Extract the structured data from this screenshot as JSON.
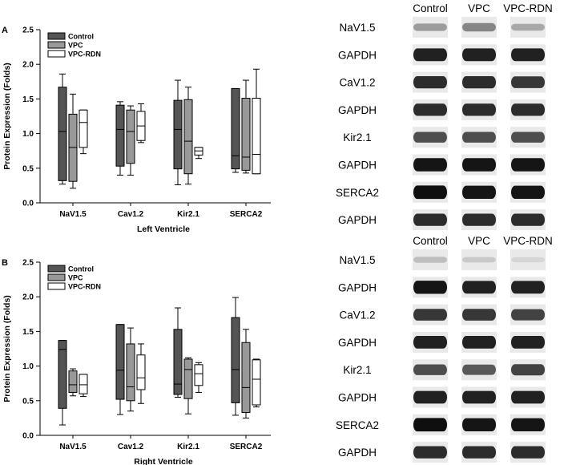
{
  "chart_data": [
    {
      "type": "box",
      "panel_label": "A",
      "xlabel": "Left Ventricle",
      "ylabel": "Protein Expression (Folds)",
      "ylim": [
        0.0,
        2.5
      ],
      "yticks": [
        "0.0",
        "0.5",
        "1.0",
        "1.5",
        "2.0",
        "2.5"
      ],
      "categories": [
        "NaV1.5",
        "Cav1.2",
        "Kir2.1",
        "SERCA2"
      ],
      "legend_position": "top-left",
      "series": [
        {
          "name": "Control",
          "color": "#555555",
          "boxes": [
            {
              "min": 0.27,
              "q1": 0.32,
              "median": 1.03,
              "q3": 1.67,
              "max": 1.86
            },
            {
              "min": 0.4,
              "q1": 0.53,
              "median": 1.06,
              "q3": 1.41,
              "max": 1.46
            },
            {
              "min": 0.26,
              "q1": 0.49,
              "median": 1.06,
              "q3": 1.48,
              "max": 1.77
            },
            {
              "min": 0.44,
              "q1": 0.49,
              "median": 0.68,
              "q3": 1.65,
              "max": 1.65
            }
          ]
        },
        {
          "name": "VPC",
          "color": "#999999",
          "boxes": [
            {
              "min": 0.21,
              "q1": 0.31,
              "median": 0.8,
              "q3": 1.28,
              "max": 1.57
            },
            {
              "min": 0.4,
              "q1": 0.57,
              "median": 1.03,
              "q3": 1.34,
              "max": 1.4
            },
            {
              "min": 0.27,
              "q1": 0.42,
              "median": 0.89,
              "q3": 1.49,
              "max": 1.67
            },
            {
              "min": 0.43,
              "q1": 0.47,
              "median": 0.66,
              "q3": 1.51,
              "max": 1.77
            }
          ]
        },
        {
          "name": "VPC-RDN",
          "color": "#ffffff",
          "boxes": [
            {
              "min": 0.71,
              "q1": 0.8,
              "median": 1.16,
              "q3": 1.34,
              "max": 1.34
            },
            {
              "min": 0.87,
              "q1": 0.9,
              "median": 1.11,
              "q3": 1.32,
              "max": 1.43
            },
            {
              "min": 0.64,
              "q1": 0.69,
              "median": 0.75,
              "q3": 0.8,
              "max": 0.8
            },
            {
              "min": 0.42,
              "q1": 0.42,
              "median": 0.7,
              "q3": 1.51,
              "max": 1.93
            }
          ]
        }
      ]
    },
    {
      "type": "box",
      "panel_label": "B",
      "xlabel": "Right Ventricle",
      "ylabel": "Protein Expression (Folds)",
      "ylim": [
        0.0,
        2.5
      ],
      "yticks": [
        "0.0",
        "0.5",
        "1.0",
        "1.5",
        "2.0",
        "2.5"
      ],
      "categories": [
        "NaV1.5",
        "Cav1.2",
        "Kir2.1",
        "SERCA2"
      ],
      "legend_position": "top-left",
      "series": [
        {
          "name": "Control",
          "color": "#555555",
          "boxes": [
            {
              "min": 0.15,
              "q1": 0.39,
              "median": 1.24,
              "q3": 1.37,
              "max": 1.37
            },
            {
              "min": 0.3,
              "q1": 0.52,
              "median": 0.94,
              "q3": 1.6,
              "max": 1.6
            },
            {
              "min": 0.55,
              "q1": 0.59,
              "median": 0.74,
              "q3": 1.53,
              "max": 1.84
            },
            {
              "min": 0.29,
              "q1": 0.47,
              "median": 0.95,
              "q3": 1.7,
              "max": 1.99
            }
          ]
        },
        {
          "name": "VPC",
          "color": "#999999",
          "boxes": [
            {
              "min": 0.57,
              "q1": 0.62,
              "median": 0.73,
              "q3": 0.93,
              "max": 0.96
            },
            {
              "min": 0.35,
              "q1": 0.5,
              "median": 0.7,
              "q3": 1.32,
              "max": 1.55
            },
            {
              "min": 0.31,
              "q1": 0.53,
              "median": 0.95,
              "q3": 1.1,
              "max": 1.12
            },
            {
              "min": 0.25,
              "q1": 0.33,
              "median": 0.69,
              "q3": 1.34,
              "max": 1.53
            }
          ]
        },
        {
          "name": "VPC-RDN",
          "color": "#ffffff",
          "boxes": [
            {
              "min": 0.56,
              "q1": 0.6,
              "median": 0.73,
              "q3": 0.88,
              "max": 0.88
            },
            {
              "min": 0.46,
              "q1": 0.66,
              "median": 0.83,
              "q3": 1.16,
              "max": 1.32
            },
            {
              "min": 0.62,
              "q1": 0.72,
              "median": 0.89,
              "q3": 1.02,
              "max": 1.05
            },
            {
              "min": 0.41,
              "q1": 0.44,
              "median": 0.81,
              "q3": 1.09,
              "max": 1.1
            }
          ]
        }
      ]
    }
  ],
  "blots": [
    {
      "columns": [
        "Control",
        "VPC",
        "VPC-RDN"
      ],
      "rows": [
        {
          "label": "NaV1.5",
          "intensity": [
            0.35,
            0.45,
            0.3
          ]
        },
        {
          "label": "GAPDH",
          "intensity": [
            0.9,
            0.9,
            0.9
          ]
        },
        {
          "label": "CaV1.2",
          "intensity": [
            0.85,
            0.85,
            0.8
          ]
        },
        {
          "label": "GAPDH",
          "intensity": [
            0.85,
            0.85,
            0.85
          ]
        },
        {
          "label": "Kir2.1",
          "intensity": [
            0.7,
            0.7,
            0.7
          ]
        },
        {
          "label": "GAPDH",
          "intensity": [
            0.95,
            0.95,
            0.95
          ]
        },
        {
          "label": "SERCA2",
          "intensity": [
            0.98,
            0.95,
            0.95
          ]
        },
        {
          "label": "GAPDH",
          "intensity": [
            0.85,
            0.85,
            0.85
          ]
        }
      ]
    },
    {
      "columns": [
        "Control",
        "VPC",
        "VPC-RDN"
      ],
      "rows": [
        {
          "label": "NaV1.5",
          "intensity": [
            0.2,
            0.15,
            0.1
          ]
        },
        {
          "label": "GAPDH",
          "intensity": [
            0.95,
            0.9,
            0.9
          ]
        },
        {
          "label": "CaV1.2",
          "intensity": [
            0.8,
            0.8,
            0.75
          ]
        },
        {
          "label": "GAPDH",
          "intensity": [
            0.9,
            0.9,
            0.9
          ]
        },
        {
          "label": "Kir2.1",
          "intensity": [
            0.7,
            0.65,
            0.75
          ]
        },
        {
          "label": "GAPDH",
          "intensity": [
            0.9,
            0.9,
            0.9
          ]
        },
        {
          "label": "SERCA2",
          "intensity": [
            0.98,
            0.95,
            0.95
          ]
        },
        {
          "label": "GAPDH",
          "intensity": [
            0.85,
            0.85,
            0.85
          ]
        }
      ]
    }
  ]
}
